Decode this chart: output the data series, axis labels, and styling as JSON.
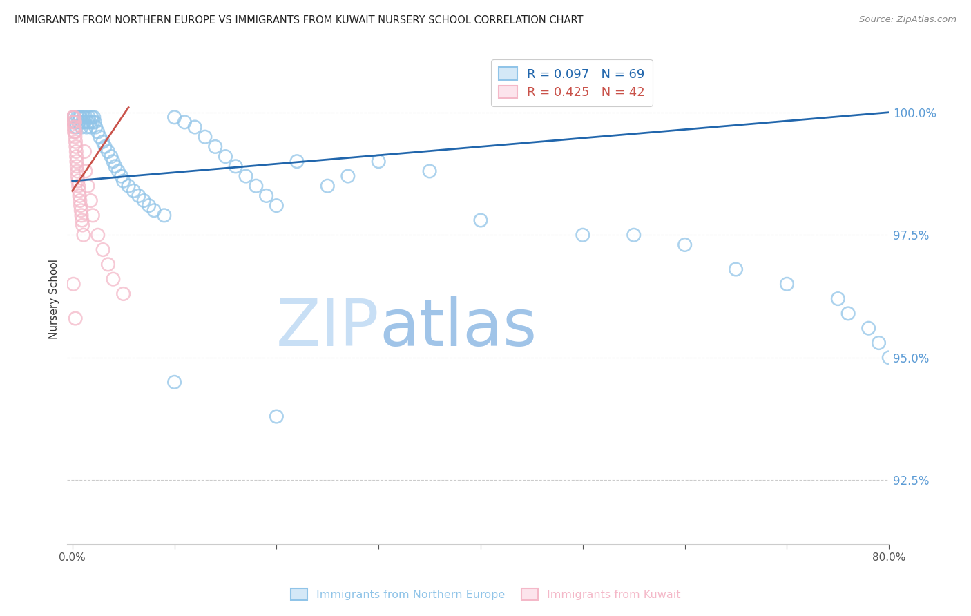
{
  "title": "IMMIGRANTS FROM NORTHERN EUROPE VS IMMIGRANTS FROM KUWAIT NURSERY SCHOOL CORRELATION CHART",
  "source": "Source: ZipAtlas.com",
  "xlabel_blue": "Immigrants from Northern Europe",
  "xlabel_pink": "Immigrants from Kuwait",
  "ylabel": "Nursery School",
  "watermark_zip": "ZIP",
  "watermark_atlas": "atlas",
  "legend_blue_r": "R = 0.097",
  "legend_blue_n": "N = 69",
  "legend_pink_r": "R = 0.425",
  "legend_pink_n": "N = 42",
  "xlim": [
    -0.5,
    80.0
  ],
  "ylim": [
    91.2,
    101.2
  ],
  "yticks": [
    92.5,
    95.0,
    97.5,
    100.0
  ],
  "ytick_labels": [
    "92.5%",
    "95.0%",
    "97.5%",
    "100.0%"
  ],
  "xticks": [
    0.0,
    10.0,
    20.0,
    30.0,
    40.0,
    50.0,
    60.0,
    70.0,
    80.0
  ],
  "xtick_labels": [
    "0.0%",
    "",
    "",
    "",
    "",
    "",
    "",
    "",
    "80.0%"
  ],
  "blue_scatter_x": [
    0.2,
    0.3,
    0.4,
    0.5,
    0.6,
    0.7,
    0.8,
    0.9,
    1.0,
    1.1,
    1.2,
    1.3,
    1.4,
    1.5,
    1.6,
    1.7,
    1.8,
    1.9,
    2.0,
    2.1,
    2.2,
    2.3,
    2.5,
    2.7,
    3.0,
    3.2,
    3.5,
    3.8,
    4.0,
    4.2,
    4.5,
    4.8,
    5.0,
    5.5,
    6.0,
    6.5,
    7.0,
    7.5,
    8.0,
    9.0,
    10.0,
    11.0,
    12.0,
    13.0,
    14.0,
    15.0,
    16.0,
    17.0,
    18.0,
    19.0,
    20.0,
    22.0,
    25.0,
    27.0,
    30.0,
    35.0,
    40.0,
    50.0,
    55.0,
    60.0,
    65.0,
    70.0,
    75.0,
    76.0,
    78.0,
    79.0,
    80.0,
    10.0,
    20.0
  ],
  "blue_scatter_y": [
    99.9,
    99.8,
    99.7,
    99.9,
    99.8,
    99.9,
    99.9,
    99.7,
    99.8,
    99.9,
    99.8,
    99.9,
    99.7,
    99.8,
    99.9,
    99.8,
    99.7,
    99.9,
    99.8,
    99.9,
    99.8,
    99.7,
    99.6,
    99.5,
    99.4,
    99.3,
    99.2,
    99.1,
    99.0,
    98.9,
    98.8,
    98.7,
    98.6,
    98.5,
    98.4,
    98.3,
    98.2,
    98.1,
    98.0,
    97.9,
    99.9,
    99.8,
    99.7,
    99.5,
    99.3,
    99.1,
    98.9,
    98.7,
    98.5,
    98.3,
    98.1,
    99.0,
    98.5,
    98.7,
    99.0,
    98.8,
    97.8,
    97.5,
    97.5,
    97.3,
    96.8,
    96.5,
    96.2,
    95.9,
    95.6,
    95.3,
    95.0,
    94.5,
    93.8
  ],
  "pink_scatter_x": [
    0.05,
    0.08,
    0.1,
    0.12,
    0.15,
    0.18,
    0.2,
    0.22,
    0.25,
    0.28,
    0.3,
    0.32,
    0.35,
    0.38,
    0.4,
    0.42,
    0.45,
    0.48,
    0.5,
    0.55,
    0.6,
    0.65,
    0.7,
    0.75,
    0.8,
    0.85,
    0.9,
    0.95,
    1.0,
    1.1,
    1.2,
    1.3,
    1.5,
    1.8,
    2.0,
    2.5,
    3.0,
    3.5,
    4.0,
    5.0,
    0.1,
    0.3
  ],
  "pink_scatter_y": [
    99.9,
    99.8,
    99.9,
    99.7,
    99.8,
    99.6,
    99.9,
    99.7,
    99.8,
    99.5,
    99.6,
    99.4,
    99.3,
    99.2,
    99.1,
    99.0,
    98.9,
    98.8,
    98.7,
    98.6,
    98.5,
    98.4,
    98.3,
    98.2,
    98.1,
    98.0,
    97.9,
    97.8,
    97.7,
    97.5,
    99.2,
    98.8,
    98.5,
    98.2,
    97.9,
    97.5,
    97.2,
    96.9,
    96.6,
    96.3,
    96.5,
    95.8
  ],
  "blue_color": "#90c4e8",
  "pink_color": "#f4b8c8",
  "trend_blue_color": "#2166ac",
  "trend_pink_color": "#c9524a",
  "grid_color": "#cccccc",
  "tick_color": "#5b9bd5",
  "title_color": "#222222",
  "watermark_color_zip": "#c8dff5",
  "watermark_color_atlas": "#a0c4e8",
  "blue_trend_x0": 0.0,
  "blue_trend_x1": 80.0,
  "blue_trend_y0": 98.6,
  "blue_trend_y1": 100.0,
  "pink_trend_x0": 0.0,
  "pink_trend_x1": 5.5,
  "pink_trend_y0": 98.4,
  "pink_trend_y1": 100.1
}
